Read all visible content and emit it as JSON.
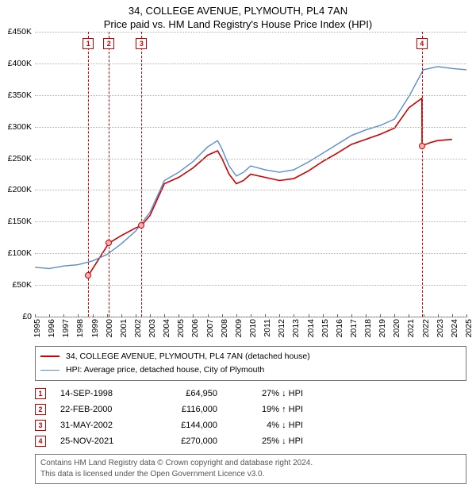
{
  "header": {
    "title": "34, COLLEGE AVENUE, PLYMOUTH, PL4 7AN",
    "subtitle": "Price paid vs. HM Land Registry's House Price Index (HPI)"
  },
  "chart": {
    "type": "line",
    "x_min": 1995,
    "x_max": 2025,
    "y_min": 0,
    "y_max": 450000,
    "y_ticks": [
      0,
      50000,
      100000,
      150000,
      200000,
      250000,
      300000,
      350000,
      400000,
      450000
    ],
    "y_tick_labels": [
      "£0",
      "£50K",
      "£100K",
      "£150K",
      "£200K",
      "£250K",
      "£300K",
      "£350K",
      "£400K",
      "£450K"
    ],
    "x_ticks": [
      1995,
      1996,
      1997,
      1998,
      1999,
      2000,
      2001,
      2002,
      2003,
      2004,
      2005,
      2006,
      2007,
      2008,
      2009,
      2010,
      2011,
      2012,
      2013,
      2014,
      2015,
      2016,
      2017,
      2018,
      2019,
      2020,
      2021,
      2022,
      2023,
      2024,
      2025
    ],
    "grid_color": "#b0b0b0",
    "background_color": "#ffffff",
    "label_fontsize": 10.5,
    "title_fontsize": 13,
    "series": [
      {
        "name": "property",
        "label": "34, COLLEGE AVENUE, PLYMOUTH, PL4 7AN (detached house)",
        "color": "#cc0000",
        "line_width": 1.6,
        "data": [
          [
            1998.71,
            64950
          ],
          [
            2000.14,
            116000
          ],
          [
            2001,
            128000
          ],
          [
            2002,
            140000
          ],
          [
            2002.41,
            144000
          ],
          [
            2003,
            160000
          ],
          [
            2004,
            210000
          ],
          [
            2005,
            220000
          ],
          [
            2006,
            235000
          ],
          [
            2007,
            255000
          ],
          [
            2007.7,
            262000
          ],
          [
            2008,
            250000
          ],
          [
            2008.5,
            225000
          ],
          [
            2009,
            210000
          ],
          [
            2009.5,
            215000
          ],
          [
            2010,
            225000
          ],
          [
            2011,
            220000
          ],
          [
            2012,
            215000
          ],
          [
            2013,
            218000
          ],
          [
            2014,
            230000
          ],
          [
            2015,
            245000
          ],
          [
            2016,
            258000
          ],
          [
            2017,
            272000
          ],
          [
            2018,
            280000
          ],
          [
            2019,
            288000
          ],
          [
            2020,
            298000
          ],
          [
            2021,
            330000
          ],
          [
            2021.9,
            345000
          ],
          [
            2021.91,
            270000
          ],
          [
            2022.5,
            275000
          ],
          [
            2023,
            278000
          ],
          [
            2024,
            280000
          ]
        ]
      },
      {
        "name": "hpi",
        "label": "HPI: Average price, detached house, City of Plymouth",
        "color": "#5b8bd0",
        "line_width": 1.4,
        "data": [
          [
            1995,
            78000
          ],
          [
            1996,
            76000
          ],
          [
            1997,
            80000
          ],
          [
            1998,
            82000
          ],
          [
            1999,
            88000
          ],
          [
            2000,
            98000
          ],
          [
            2001,
            115000
          ],
          [
            2002,
            135000
          ],
          [
            2003,
            165000
          ],
          [
            2004,
            215000
          ],
          [
            2005,
            228000
          ],
          [
            2006,
            245000
          ],
          [
            2007,
            268000
          ],
          [
            2007.7,
            278000
          ],
          [
            2008,
            265000
          ],
          [
            2008.5,
            238000
          ],
          [
            2009,
            222000
          ],
          [
            2009.5,
            228000
          ],
          [
            2010,
            238000
          ],
          [
            2011,
            232000
          ],
          [
            2012,
            228000
          ],
          [
            2013,
            232000
          ],
          [
            2014,
            244000
          ],
          [
            2015,
            258000
          ],
          [
            2016,
            272000
          ],
          [
            2017,
            286000
          ],
          [
            2018,
            295000
          ],
          [
            2019,
            302000
          ],
          [
            2020,
            312000
          ],
          [
            2021,
            348000
          ],
          [
            2022,
            390000
          ],
          [
            2023,
            395000
          ],
          [
            2024,
            392000
          ],
          [
            2025,
            390000
          ]
        ]
      }
    ],
    "vlines": [
      1998.71,
      2000.14,
      2002.41,
      2021.9
    ],
    "markers": [
      {
        "n": "1",
        "x": 1998.71
      },
      {
        "n": "2",
        "x": 2000.14
      },
      {
        "n": "3",
        "x": 2002.41
      },
      {
        "n": "4",
        "x": 2021.9
      }
    ],
    "points": [
      {
        "x": 1998.71,
        "y": 64950
      },
      {
        "x": 2000.14,
        "y": 116000
      },
      {
        "x": 2002.41,
        "y": 144000
      },
      {
        "x": 2021.9,
        "y": 270000
      }
    ]
  },
  "legend": {
    "items": [
      {
        "color": "#cc0000",
        "width": 2,
        "label": "34, COLLEGE AVENUE, PLYMOUTH, PL4 7AN (detached house)"
      },
      {
        "color": "#5b8bd0",
        "width": 1.5,
        "label": "HPI: Average price, detached house, City of Plymouth"
      }
    ]
  },
  "transactions": [
    {
      "n": "1",
      "date": "14-SEP-1998",
      "price": "£64,950",
      "diff": "27% ↓ HPI"
    },
    {
      "n": "2",
      "date": "22-FEB-2000",
      "price": "£116,000",
      "diff": "19% ↑ HPI"
    },
    {
      "n": "3",
      "date": "31-MAY-2002",
      "price": "£144,000",
      "diff": "4% ↓ HPI"
    },
    {
      "n": "4",
      "date": "25-NOV-2021",
      "price": "£270,000",
      "diff": "25% ↓ HPI"
    }
  ],
  "footer": {
    "line1": "Contains HM Land Registry data © Crown copyright and database right 2024.",
    "line2": "This data is licensed under the Open Government Licence v3.0."
  }
}
